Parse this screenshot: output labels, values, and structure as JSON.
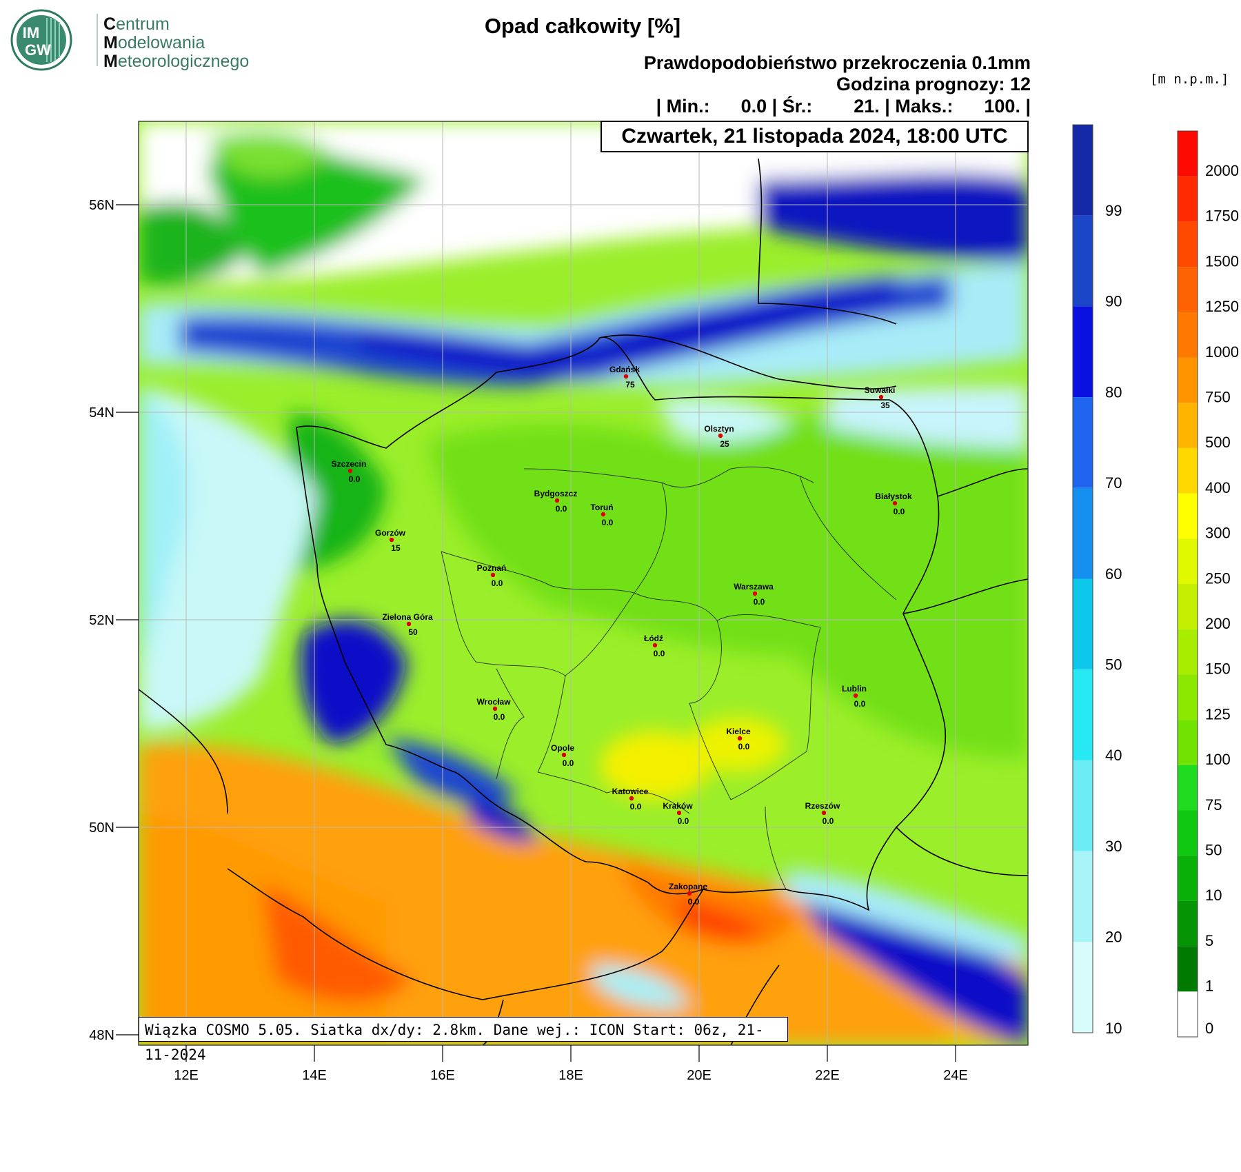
{
  "logo": {
    "badge_top": "IM",
    "badge_bottom": "GW",
    "line1_cap": "C",
    "line1_rest": "entrum",
    "line2_cap": "M",
    "line2_rest": "odelowania",
    "line3_cap": "M",
    "line3_rest": "eteorologicznego"
  },
  "header": {
    "title": "Opad całkowity [%]",
    "subtitle": "Prawdopodobieństwo przekroczenia 0.1mm",
    "forecast_hour": "Godzina prognozy: 12",
    "stats": "| Min.:      0.0 | Śr.:        21. | Maks.:      100. |",
    "date": "Czwartek, 21 listopada 2024, 18:00 UTC"
  },
  "footer": {
    "model_info": "Wiązka COSMO 5.05. Siatka dx/dy: 2.8km. Dane wej.: ICON Start: 06z, 21-11-2024"
  },
  "axes": {
    "lat_labels": [
      "56N",
      "54N",
      "52N",
      "50N",
      "48N"
    ],
    "lon_labels": [
      "12E",
      "14E",
      "16E",
      "18E",
      "20E",
      "22E",
      "24E"
    ]
  },
  "cities": [
    {
      "name": "Gdańsk",
      "value": "75"
    },
    {
      "name": "Suwałki",
      "value": "35"
    },
    {
      "name": "Olsztyn",
      "value": "25"
    },
    {
      "name": "Szczecin",
      "value": "0.0"
    },
    {
      "name": "Bydgoszcz",
      "value": "0.0"
    },
    {
      "name": "Toruń",
      "value": "0.0"
    },
    {
      "name": "Białystok",
      "value": "0.0"
    },
    {
      "name": "Gorzów",
      "value": "15"
    },
    {
      "name": "Poznań",
      "value": "0.0"
    },
    {
      "name": "Warszawa",
      "value": "0.0"
    },
    {
      "name": "Zielona Góra",
      "value": "50"
    },
    {
      "name": "Łódź",
      "value": "0.0"
    },
    {
      "name": "Wrocław",
      "value": "0.0"
    },
    {
      "name": "Lublin",
      "value": "0.0"
    },
    {
      "name": "Kielce",
      "value": "0.0"
    },
    {
      "name": "Opole",
      "value": "0.0"
    },
    {
      "name": "Katowice",
      "value": "0.0"
    },
    {
      "name": "Kraków",
      "value": "0.0"
    },
    {
      "name": "Rzeszów",
      "value": "0.0"
    },
    {
      "name": "Zakopane",
      "value": "0.0"
    }
  ],
  "precip_colorbar": {
    "labels": [
      "99",
      "90",
      "80",
      "70",
      "60",
      "50",
      "40",
      "30",
      "20",
      "10"
    ],
    "colors": [
      "#1428a8",
      "#1c46c8",
      "#0a10e0",
      "#1e64ee",
      "#1690f0",
      "#0ec8ec",
      "#28e8f4",
      "#6cecf4",
      "#a8f4f8",
      "#d8fcfc"
    ]
  },
  "terrain_colorbar": {
    "unit": "[m n.p.m.]",
    "labels": [
      "2000",
      "1750",
      "1500",
      "1250",
      "1000",
      "750",
      "500",
      "400",
      "300",
      "250",
      "200",
      "150",
      "125",
      "100",
      "75",
      "50",
      "10",
      "5",
      "1",
      "0"
    ],
    "colors": [
      "#ff0a00",
      "#ff2a00",
      "#ff4800",
      "#ff6200",
      "#ff7800",
      "#ff9400",
      "#ffb400",
      "#ffd800",
      "#ffff00",
      "#e0f800",
      "#c4f000",
      "#a8ec00",
      "#8ce800",
      "#70e400",
      "#20dc20",
      "#10c810",
      "#08b008",
      "#049404",
      "#007a00",
      "#ffffff"
    ]
  }
}
